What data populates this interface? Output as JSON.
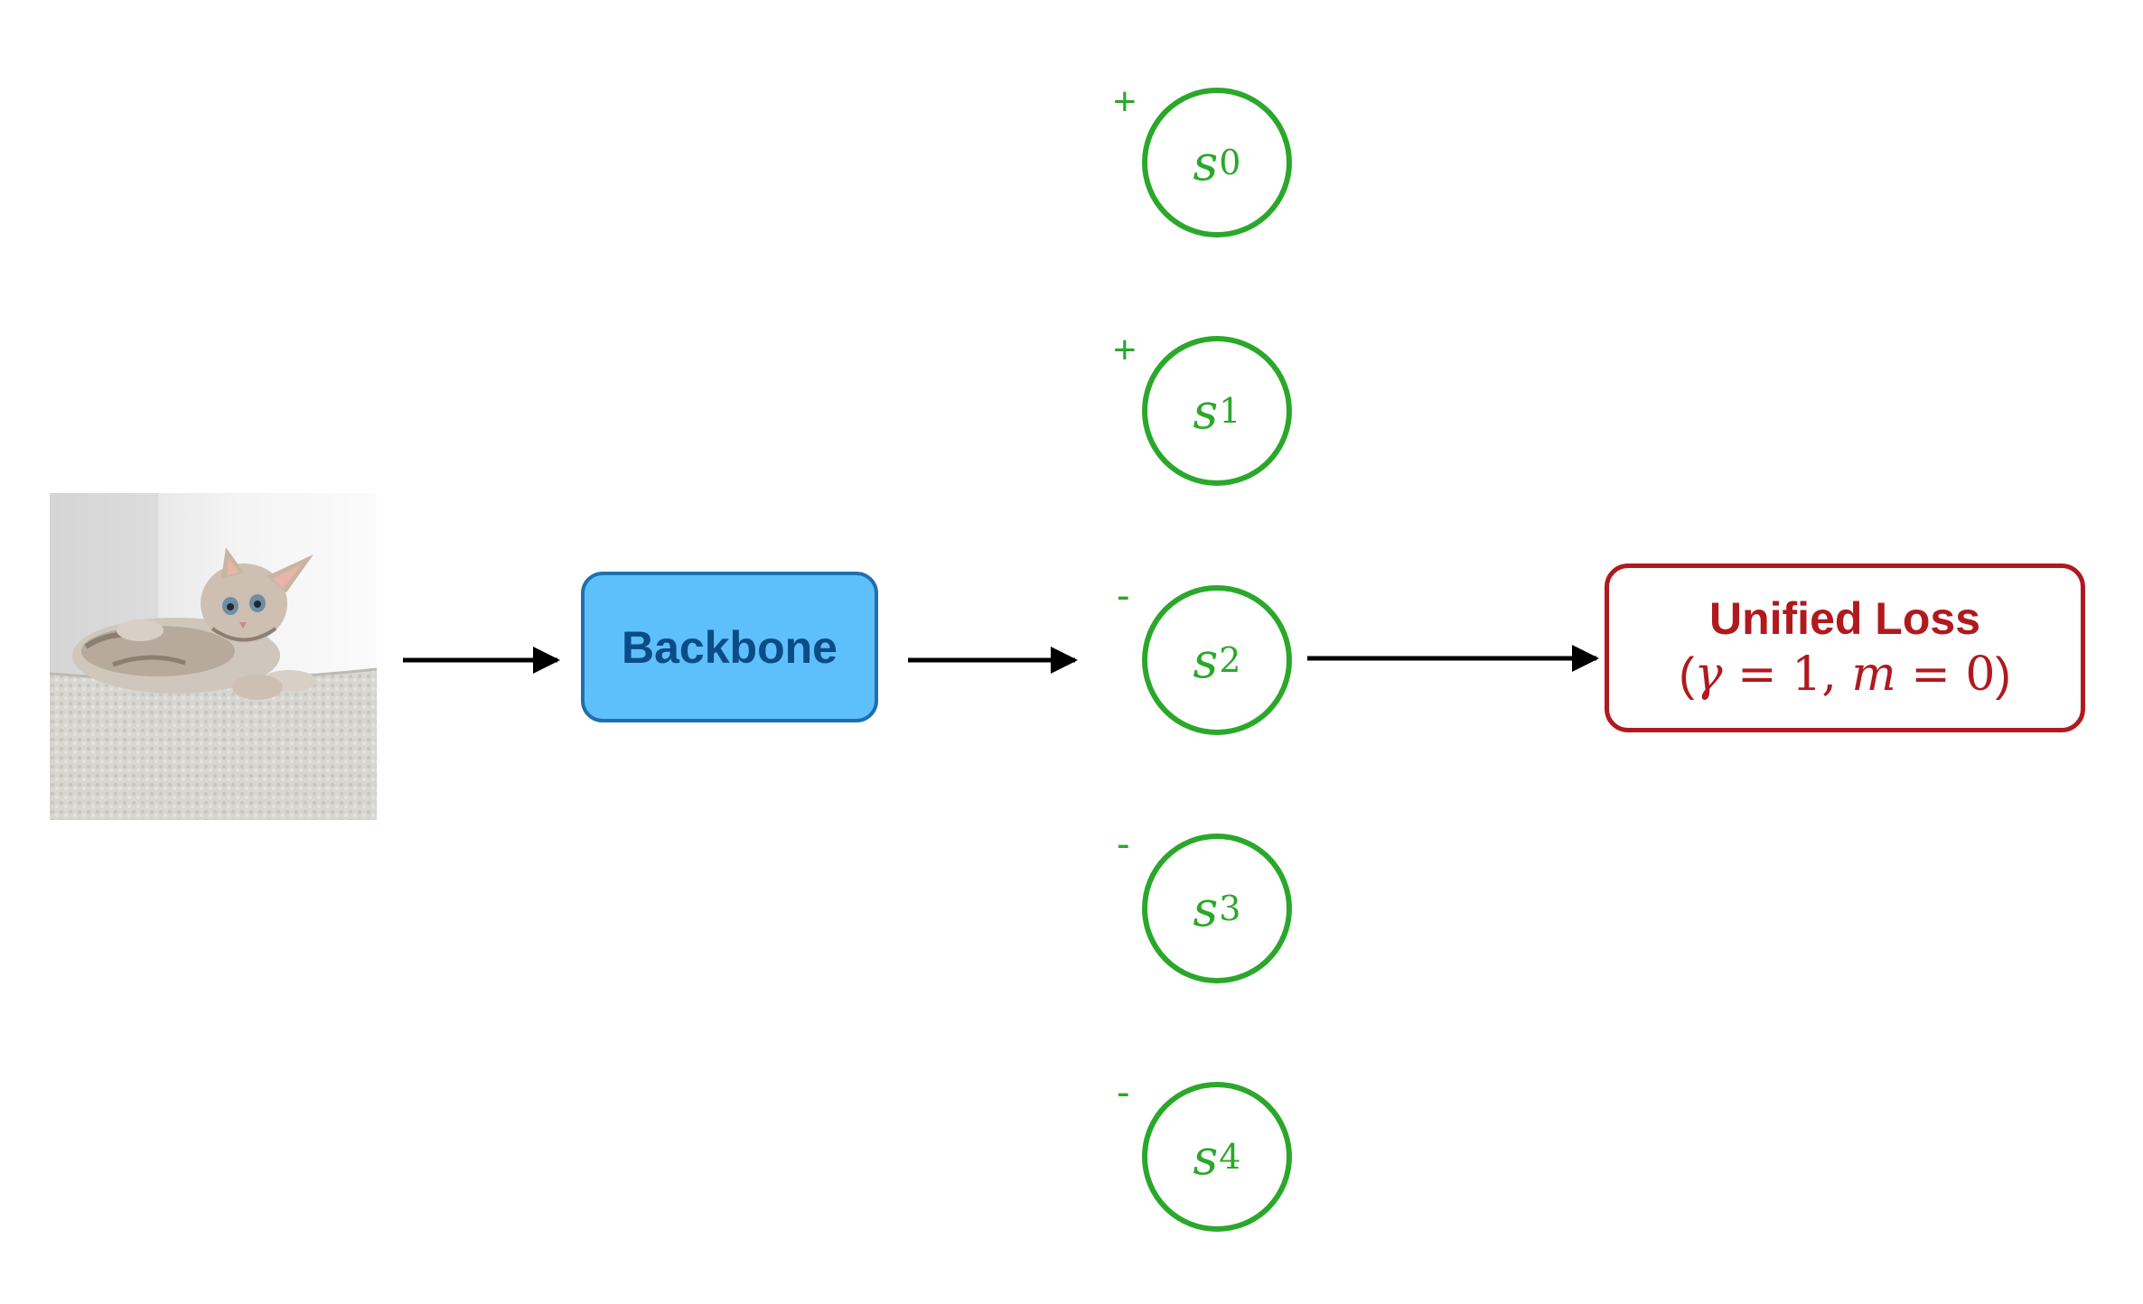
{
  "backbone": {
    "label": "Backbone",
    "fill": "#5ec0fb",
    "border": "#1f6fae",
    "text_color": "#0b4b86"
  },
  "loss": {
    "title": "Unified Loss",
    "formula": {
      "open": "(",
      "gamma": "γ",
      "eq1": " = 1, ",
      "m": "m",
      "eq2": " = 0",
      "close": ")"
    },
    "color": "#b0191e"
  },
  "scores": [
    {
      "var": "s",
      "index": "0",
      "sign": "+"
    },
    {
      "var": "s",
      "index": "1",
      "sign": "+"
    },
    {
      "var": "s",
      "index": "2",
      "sign": "-"
    },
    {
      "var": "s",
      "index": "3",
      "sign": "-"
    },
    {
      "var": "s",
      "index": "4",
      "sign": "-"
    }
  ],
  "score_color": "#2aa82a",
  "input_image": {
    "subject": "kitten lying on a white rug"
  },
  "arrows": [
    "image-to-backbone",
    "backbone-to-scores",
    "scores-to-loss"
  ]
}
